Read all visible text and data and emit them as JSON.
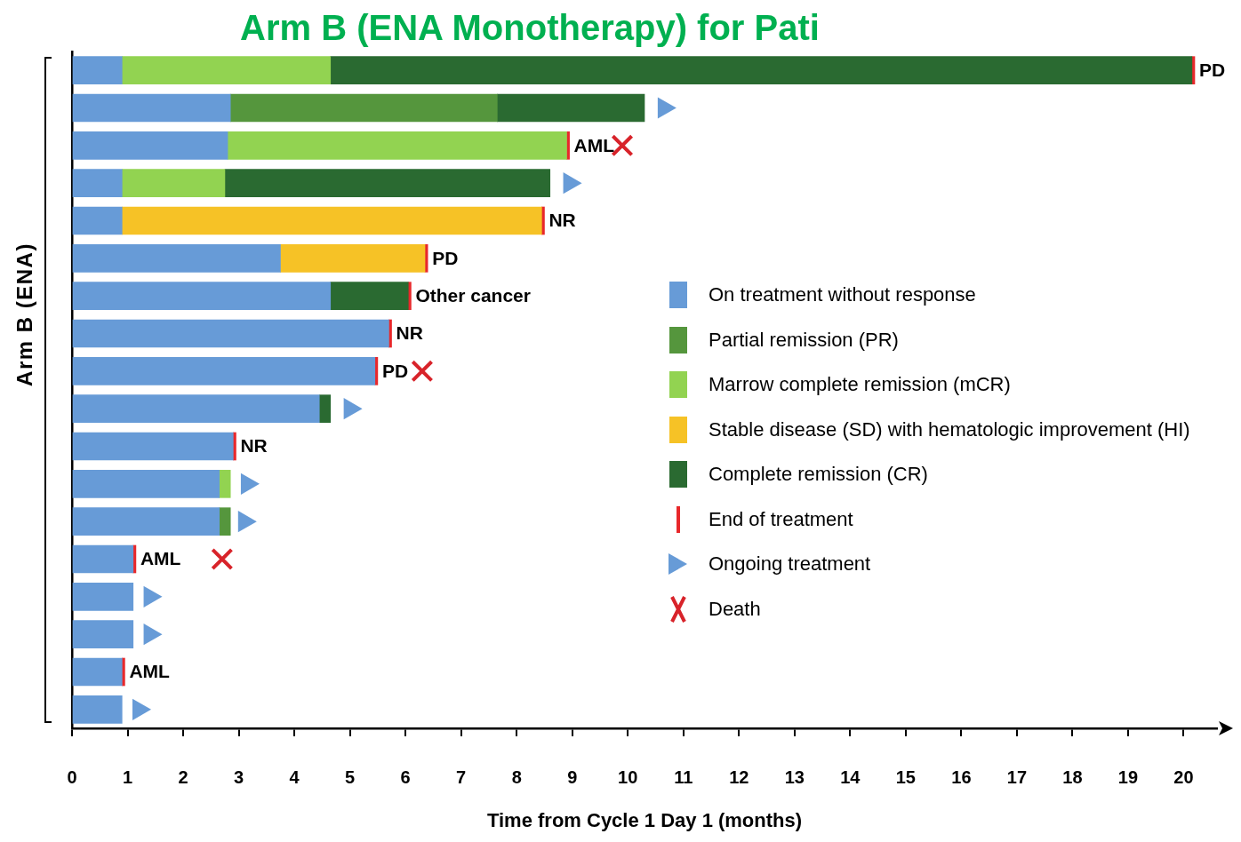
{
  "chart_data": {
    "type": "bar",
    "orientation": "horizontal",
    "stacked": true,
    "title": "Arm B (ENA Monotherapy) for Pati",
    "xlabel": "Time from Cycle 1 Day 1 (months)",
    "ylabel": "Arm B (ENA)",
    "categories": [
      null,
      null,
      null,
      null,
      null,
      null,
      null,
      null,
      null,
      null,
      null,
      null,
      null,
      null,
      null,
      null,
      null,
      null
    ],
    "series": [
      {
        "name": "On treatment without response",
        "color": "#679bd7",
        "values": [
          0.9,
          2.85,
          2.8,
          0.9,
          0.9,
          3.75,
          4.65,
          5.7,
          5.45,
          4.45,
          2.9,
          2.65,
          2.65,
          1.1,
          1.1,
          1.1,
          0.9,
          0.9
        ]
      },
      {
        "name": "Partial remission (PR)",
        "color": "#55963d",
        "values": [
          null,
          4.8,
          null,
          null,
          null,
          null,
          null,
          null,
          null,
          null,
          null,
          null,
          0.2,
          null,
          null,
          null,
          null,
          null
        ]
      },
      {
        "name": "Marrow complete remission (mCR)",
        "color": "#92d351",
        "values": [
          3.75,
          null,
          6.1,
          1.85,
          null,
          null,
          null,
          null,
          null,
          null,
          null,
          0.2,
          null,
          null,
          null,
          null,
          null,
          null
        ]
      },
      {
        "name": "Stable disease (SD) with hematologic improvement (HI)",
        "color": "#f6c226",
        "values": [
          null,
          null,
          null,
          null,
          7.55,
          2.6,
          null,
          null,
          null,
          null,
          null,
          null,
          null,
          null,
          null,
          null,
          null,
          null
        ]
      },
      {
        "name": "Complete remission (CR)",
        "color": "#2a6a31",
        "values": [
          15.5,
          2.65,
          null,
          5.85,
          null,
          null,
          1.4,
          null,
          null,
          0.2,
          null,
          null,
          null,
          null,
          null,
          null,
          null,
          null
        ]
      },
      {
        "name": "End of treatment",
        "color": "#e8282b",
        "values": [
          0.05,
          null,
          0.05,
          null,
          0.05,
          0.05,
          0.05,
          0.05,
          0.05,
          null,
          0.05,
          null,
          null,
          0.05,
          null,
          null,
          0.05,
          null
        ],
        "value_labels": [
          "PD",
          null,
          "AML",
          null,
          "NR",
          "PD",
          "Other cancer",
          "NR",
          "PD",
          null,
          "NR",
          null,
          null,
          "AML",
          null,
          null,
          "AML",
          null
        ]
      },
      {
        "name": "Ongoing treatment",
        "type": "scatter",
        "marker": "triangle",
        "color": "#679bd7",
        "values": [
          null,
          10.65,
          null,
          8.95,
          null,
          null,
          null,
          null,
          null,
          5,
          null,
          3.15,
          3.1,
          null,
          1.4,
          1.4,
          null,
          1.2
        ]
      },
      {
        "name": "Death",
        "type": "scatter",
        "marker": "cross",
        "color": "#d8232a",
        "values": [
          null,
          null,
          9.9,
          null,
          null,
          null,
          null,
          null,
          6.3,
          null,
          null,
          null,
          null,
          2.7,
          null,
          null,
          null,
          null
        ]
      }
    ],
    "xlim": [
      0,
      20.6
    ],
    "xticks": [
      0,
      1,
      2,
      3,
      4,
      5,
      6,
      7,
      8,
      9,
      10,
      11,
      12,
      13,
      14,
      15,
      16,
      17,
      18,
      19,
      20
    ],
    "legend": "right"
  }
}
